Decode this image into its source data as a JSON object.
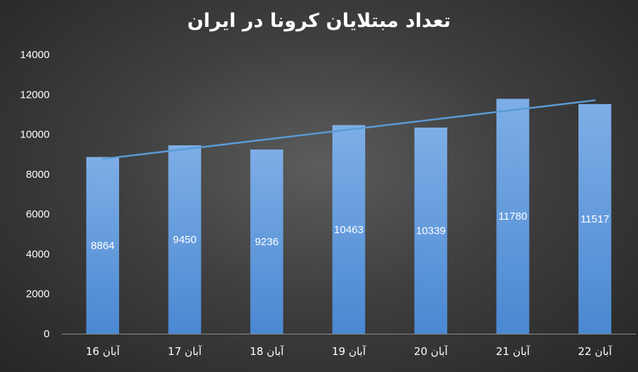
{
  "chart_data": {
    "type": "bar",
    "title": "تعداد مبتلایان کرونا در ایران",
    "categories": [
      "16 آبان",
      "17 آبان",
      "18 آبان",
      "19 آبان",
      "20 آبان",
      "21 آبان",
      "22 آبان"
    ],
    "values": [
      8864,
      9450,
      9236,
      10463,
      10339,
      11780,
      11517
    ],
    "data_labels": [
      "8864",
      "9450",
      "9236",
      "10463",
      "10339",
      "11780",
      "11517"
    ],
    "ylim": [
      0,
      14000
    ],
    "y_ticks": [
      0,
      2000,
      4000,
      6000,
      8000,
      10000,
      12000,
      14000
    ],
    "y_tick_labels": [
      "0",
      "2000",
      "4000",
      "6000",
      "8000",
      "10000",
      "12000",
      "14000"
    ],
    "trendline": "linear",
    "grid": false,
    "legend": "none",
    "colors": {
      "bar_top": "#7eaee6",
      "bar_bottom": "#4a88d2",
      "trendline": "#5b9bd5",
      "text": "#ffffff",
      "axis": "#8a8a8a"
    }
  }
}
